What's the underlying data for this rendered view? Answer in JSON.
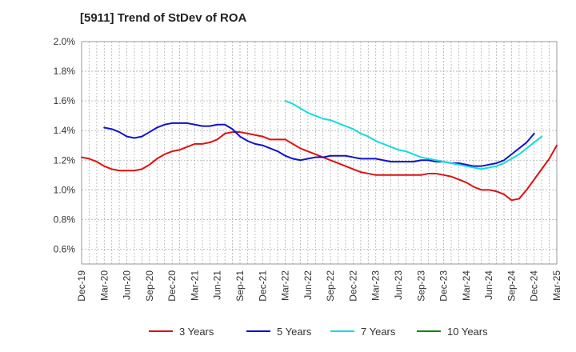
{
  "chart_data": {
    "type": "line",
    "title": "[5911]  Trend of StDev of ROA",
    "xlabel": "",
    "ylabel": "",
    "ylim": [
      0.5,
      2.0
    ],
    "yticks": [
      0.6,
      0.8,
      1.0,
      1.2,
      1.4,
      1.6,
      1.8,
      2.0
    ],
    "ytick_labels": [
      "0.6%",
      "0.8%",
      "1.0%",
      "1.2%",
      "1.4%",
      "1.6%",
      "1.8%",
      "2.0%"
    ],
    "x_tick_labels": [
      "Dec-19",
      "Mar-20",
      "Jun-20",
      "Sep-20",
      "Dec-20",
      "Mar-21",
      "Jun-21",
      "Sep-21",
      "Dec-21",
      "Mar-22",
      "Jun-22",
      "Sep-22",
      "Dec-22",
      "Mar-23",
      "Jun-23",
      "Sep-23",
      "Dec-23",
      "Mar-24",
      "Jun-24",
      "Sep-24",
      "Dec-24",
      "Mar-25"
    ],
    "x_months_total": 63,
    "grid": true,
    "legend_position": "bottom",
    "series": [
      {
        "name": "3 Years",
        "color": "#dd1111",
        "start_month": 0,
        "values": [
          1.22,
          1.21,
          1.19,
          1.16,
          1.14,
          1.13,
          1.13,
          1.13,
          1.14,
          1.17,
          1.21,
          1.24,
          1.26,
          1.27,
          1.29,
          1.31,
          1.31,
          1.32,
          1.34,
          1.38,
          1.39,
          1.39,
          1.38,
          1.37,
          1.36,
          1.34,
          1.34,
          1.34,
          1.31,
          1.28,
          1.26,
          1.24,
          1.22,
          1.2,
          1.18,
          1.16,
          1.14,
          1.12,
          1.11,
          1.1,
          1.1,
          1.1,
          1.1,
          1.1,
          1.1,
          1.1,
          1.11,
          1.11,
          1.1,
          1.09,
          1.07,
          1.05,
          1.02,
          1.0,
          1.0,
          0.99,
          0.97,
          0.93,
          0.94,
          1.0,
          1.07,
          1.14,
          1.21,
          1.3
        ]
      },
      {
        "name": "5 Years",
        "color": "#1111cc",
        "start_month": 3,
        "values": [
          1.42,
          1.41,
          1.39,
          1.36,
          1.35,
          1.36,
          1.39,
          1.42,
          1.44,
          1.45,
          1.45,
          1.45,
          1.44,
          1.43,
          1.43,
          1.44,
          1.44,
          1.41,
          1.36,
          1.33,
          1.31,
          1.3,
          1.28,
          1.26,
          1.23,
          1.21,
          1.2,
          1.21,
          1.22,
          1.22,
          1.23,
          1.23,
          1.23,
          1.22,
          1.21,
          1.21,
          1.21,
          1.2,
          1.19,
          1.19,
          1.19,
          1.19,
          1.2,
          1.2,
          1.19,
          1.19,
          1.18,
          1.18,
          1.17,
          1.16,
          1.16,
          1.17,
          1.18,
          1.2,
          1.24,
          1.28,
          1.32,
          1.38
        ]
      },
      {
        "name": "7 Years",
        "color": "#11dddd",
        "start_month": 27,
        "values": [
          1.6,
          1.58,
          1.55,
          1.52,
          1.5,
          1.48,
          1.47,
          1.45,
          1.43,
          1.41,
          1.38,
          1.36,
          1.33,
          1.31,
          1.29,
          1.27,
          1.26,
          1.24,
          1.22,
          1.21,
          1.2,
          1.19,
          1.18,
          1.17,
          1.16,
          1.15,
          1.14,
          1.15,
          1.16,
          1.18,
          1.21,
          1.24,
          1.28,
          1.32,
          1.36
        ]
      },
      {
        "name": "10 Years",
        "color": "#118811",
        "start_month": 0,
        "values": []
      }
    ]
  }
}
